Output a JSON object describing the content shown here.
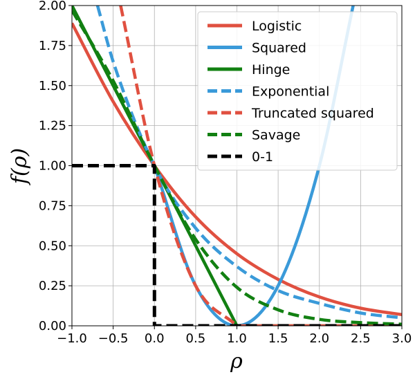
{
  "chart_data": {
    "type": "line",
    "title": "",
    "xlabel": "ρ",
    "ylabel": "f(ρ)",
    "xlim": [
      -1.0,
      3.0
    ],
    "ylim": [
      0.0,
      2.0
    ],
    "x_ticks": [
      "−1.0",
      "−0.5",
      "0.0",
      "0.5",
      "1.0",
      "1.5",
      "2.0",
      "2.5",
      "3.0"
    ],
    "y_ticks": [
      "0.00",
      "0.25",
      "0.50",
      "0.75",
      "1.00",
      "1.25",
      "1.50",
      "1.75",
      "2.00"
    ],
    "grid": true,
    "legend_position": "top-right",
    "series": [
      {
        "name": "Logistic",
        "color": "#e05040",
        "style": "solid",
        "x": [
          -1.0,
          -0.5,
          0.0,
          0.5,
          1.0,
          1.5,
          2.0,
          2.5,
          3.0
        ],
        "y": [
          1.89,
          1.4,
          1.0,
          0.68,
          0.45,
          0.29,
          0.18,
          0.11,
          0.07
        ]
      },
      {
        "name": "Squared",
        "color": "#3a9ad9",
        "style": "solid",
        "x": [
          0.0,
          0.5,
          1.0,
          1.5,
          2.0,
          2.41
        ],
        "y": [
          1.0,
          0.25,
          0.0,
          0.25,
          1.0,
          2.0
        ]
      },
      {
        "name": "Hinge",
        "color": "#128012",
        "style": "solid",
        "x": [
          -1.0,
          0.0,
          1.0,
          1.5,
          2.0,
          2.5,
          3.0
        ],
        "y": [
          2.0,
          1.0,
          0.0,
          0.0,
          0.0,
          0.0,
          0.0
        ]
      },
      {
        "name": "Exponential",
        "color": "#3a9ad9",
        "style": "dashed",
        "x": [
          -0.69,
          -0.5,
          0.0,
          0.5,
          1.0,
          1.5,
          2.0,
          2.5,
          3.0
        ],
        "y": [
          2.0,
          1.65,
          1.0,
          0.61,
          0.37,
          0.22,
          0.14,
          0.08,
          0.05
        ]
      },
      {
        "name": "Truncated squared",
        "color": "#e05040",
        "style": "dashed",
        "x": [
          -0.41,
          0.0,
          0.5,
          1.0,
          1.5,
          2.0,
          3.0
        ],
        "y": [
          2.0,
          1.0,
          0.25,
          0.0,
          0.0,
          0.0,
          0.0
        ]
      },
      {
        "name": "Savage",
        "color": "#128012",
        "style": "dashed",
        "x": [
          -1.0,
          -0.5,
          0.0,
          0.5,
          1.0,
          1.5,
          2.0,
          2.5,
          3.0
        ],
        "y": [
          1.97,
          1.53,
          1.0,
          0.54,
          0.24,
          0.1,
          0.04,
          0.02,
          0.01
        ]
      },
      {
        "name": "0-1",
        "color": "#000000",
        "style": "dashed",
        "x": [
          -1.0,
          0.0,
          0.0,
          3.0
        ],
        "y": [
          1.0,
          1.0,
          0.0,
          0.0
        ]
      }
    ]
  }
}
